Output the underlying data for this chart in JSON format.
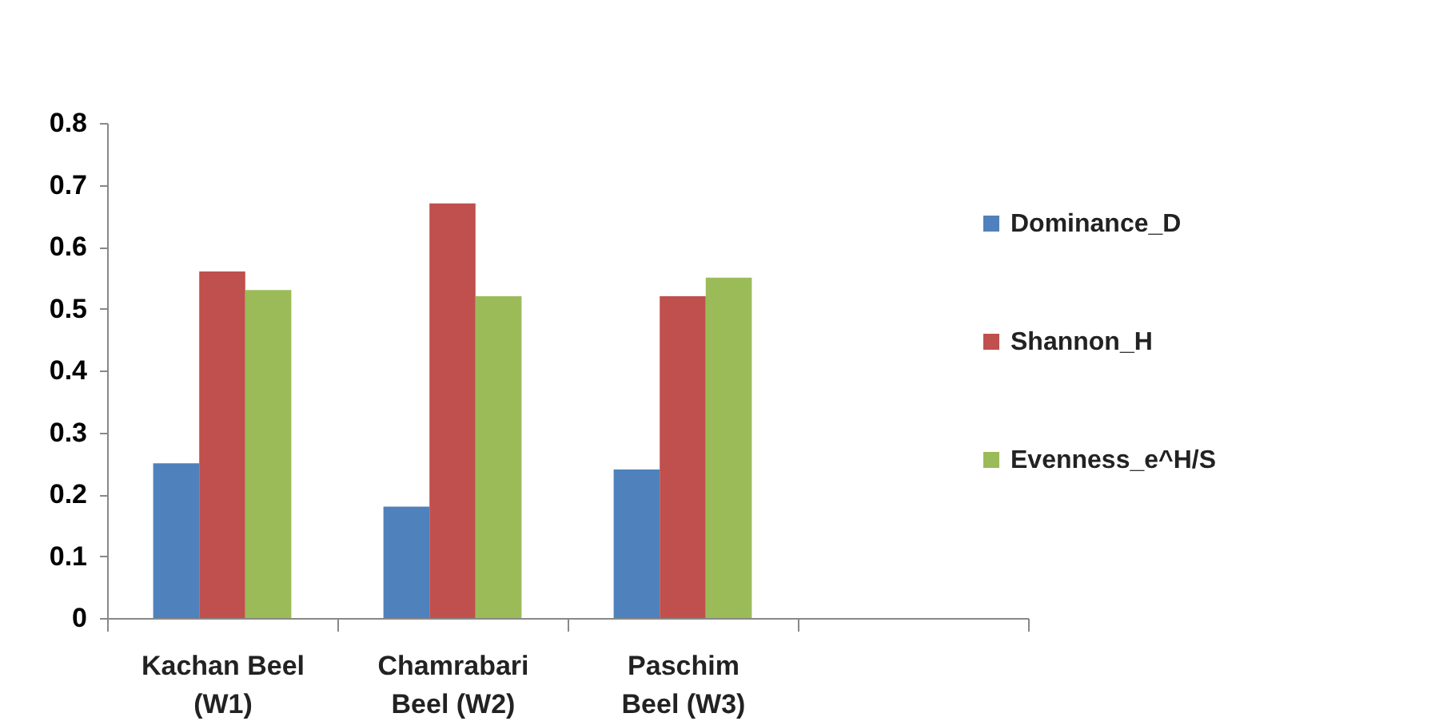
{
  "chart_data": {
    "type": "bar",
    "categories": [
      "Kachan Beel (W1)",
      "Chamrabari Beel (W2)",
      "Paschim Beel (W3)",
      null
    ],
    "series": [
      {
        "name": "Dominance_D",
        "color": "#4f81bd",
        "values": [
          0.25,
          0.18,
          0.24,
          null
        ]
      },
      {
        "name": "Shannon_H",
        "color": "#c0504d",
        "values": [
          0.56,
          0.67,
          0.52,
          null
        ]
      },
      {
        "name": "Evenness_e^H/S",
        "color": "#9bbb59",
        "values": [
          0.53,
          0.52,
          0.55,
          null
        ]
      }
    ],
    "ylim": [
      0,
      0.8
    ],
    "yticks": [
      0,
      0.1,
      0.2,
      0.3,
      0.4,
      0.5,
      0.6,
      0.7,
      0.8
    ],
    "grid": false,
    "legend": "right"
  }
}
